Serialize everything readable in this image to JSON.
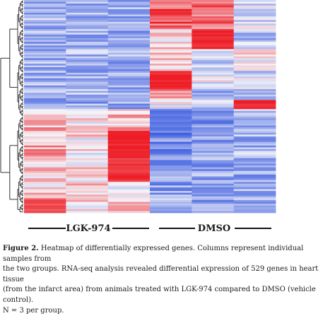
{
  "chart_data": {
    "type": "heatmap",
    "title": "",
    "xlabel": "",
    "ylabel": "",
    "columns": [
      "LGK-974 sample 1",
      "LGK-974 sample 2",
      "LGK-974 sample 3",
      "DMSO sample 1",
      "DMSO sample 2",
      "DMSO sample 3"
    ],
    "groups": [
      {
        "name": "LGK-974",
        "columns": [
          0,
          1,
          2
        ]
      },
      {
        "name": "DMSO",
        "columns": [
          3,
          4,
          5
        ]
      }
    ],
    "color_scale": {
      "low": "#3a5be0",
      "mid": "#f4f4f8",
      "high": "#ee1c25"
    },
    "value_range": [
      -2,
      2
    ],
    "row_blocks": [
      {
        "rows": 16,
        "levels": [
          -0.8,
          -0.9,
          -0.9,
          1.4,
          1.2,
          -0.4
        ]
      },
      {
        "rows": 11,
        "levels": [
          -0.8,
          -0.8,
          -0.9,
          0.3,
          2.0,
          -0.6
        ]
      },
      {
        "rows": 12,
        "levels": [
          -0.9,
          -0.8,
          -0.9,
          0.2,
          -0.6,
          0.2
        ]
      },
      {
        "rows": 10,
        "levels": [
          -0.9,
          -0.9,
          -0.9,
          2.0,
          -0.2,
          -0.4
        ]
      },
      {
        "rows": 6,
        "levels": [
          -0.8,
          -0.8,
          -0.9,
          0.9,
          -0.8,
          -0.5
        ]
      },
      {
        "rows": 5,
        "levels": [
          -0.9,
          -0.9,
          -0.9,
          -0.3,
          -0.6,
          2.0
        ]
      },
      {
        "rows": 12,
        "levels": [
          0.6,
          0.2,
          0.6,
          -1.6,
          -1.1,
          -0.8
        ]
      },
      {
        "rows": 14,
        "levels": [
          0.7,
          0.2,
          2.0,
          -1.4,
          -1.0,
          -0.8
        ]
      },
      {
        "rows": 14,
        "levels": [
          0.4,
          0.2,
          1.8,
          -1.2,
          -1.0,
          -0.9
        ]
      },
      {
        "rows": 9,
        "levels": [
          0.3,
          0.5,
          -0.2,
          -1.0,
          -1.0,
          -0.9
        ]
      },
      {
        "rows": 8,
        "levels": [
          1.6,
          0.2,
          0.4,
          -0.9,
          -1.0,
          -1.0
        ]
      }
    ],
    "dendrogram": "row clustering tree on left"
  },
  "labels": {
    "group1": "LGK-974",
    "group2": "DMSO"
  },
  "caption": {
    "lead": "Figure 2.",
    "line1": " Heatmap of differentially expressed genes. Columns represent individual samples from",
    "line2": "the two groups.  RNA-seq analysis revealed differential expression of 529 genes in heart tissue",
    "line3": "(from the infarct area) from animals treated with LGK-974 compared to DMSO (vehicle control).",
    "line4": "N = 3 per group."
  }
}
